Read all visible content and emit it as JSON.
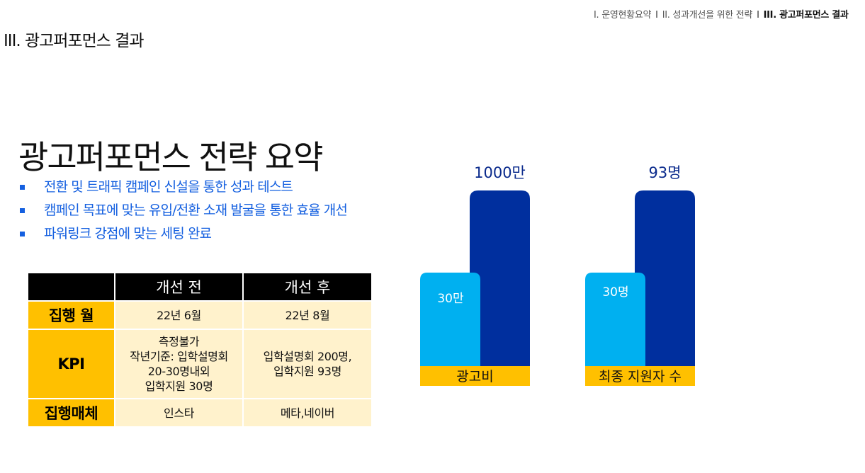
{
  "breadcrumb": {
    "items": [
      "I. 운영현황요약",
      "II. 성과개선을 위한 전략",
      "III. 광고퍼포먼스 결과"
    ],
    "separator": "I"
  },
  "page_title": "III. 광고퍼포먼스 결과",
  "heading": "광고퍼포먼스 전략 요약",
  "bullets": [
    "전환 및 트래픽 캠페인 신설을 통한 성과 테스트",
    "캠페인 목표에 맞는 유입/전환 소재 발굴을 통한 효율 개선",
    "파워링크 강점에 맞는 세팅 완료"
  ],
  "table": {
    "columns": [
      "",
      "개선 전",
      "개선 후"
    ],
    "rows": [
      {
        "label": "집행 월",
        "before": "22년 6월",
        "after": "22년 8월"
      },
      {
        "label": "KPI",
        "before": [
          "측정불가",
          "작년기준: 입학설명회",
          "20-30명내외",
          "입학지원 30명"
        ],
        "after": [
          "입학설명회 200명,",
          "입학지원 93명"
        ]
      },
      {
        "label": "집행매체",
        "before": "인스타",
        "after": "메타,네이버"
      }
    ]
  },
  "colors": {
    "before_bar": "#00b0f0",
    "after_bar": "#002f9e",
    "label_bar": "#ffc000",
    "accent_text": "#1560e0"
  },
  "chart_data": [
    {
      "type": "bar",
      "category": "광고비",
      "values": [
        30,
        1000
      ],
      "value_labels": [
        "30만",
        "1000만"
      ]
    },
    {
      "type": "bar",
      "category": "최종 지원자 수",
      "values": [
        30,
        93
      ],
      "value_labels": [
        "30명",
        "93명"
      ]
    }
  ]
}
